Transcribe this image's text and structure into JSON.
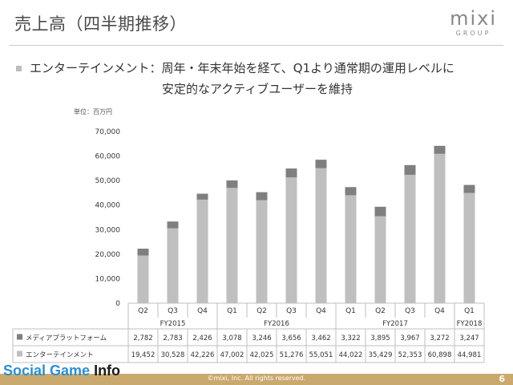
{
  "slide": {
    "title": "売上高（四半期推移）",
    "logo_word": "mixi",
    "logo_sub": "GROUP",
    "bullet_line1": "エンターテインメント：周年・年末年始を経て、Q1より通常期の運用レベルに",
    "bullet_line2": "安定的なアクティブユーザーを維持",
    "footer_copy": "©mixi, Inc. All rights reserved.",
    "page_number": "6",
    "watermark_a": "Social Game ",
    "watermark_b": "Info"
  },
  "colors": {
    "media_platform": "#7f7f7f",
    "entertainment": "#bfbfbf",
    "footer": "#c9a96e"
  },
  "chart_data": {
    "type": "bar",
    "stacked": true,
    "unit_label": "単位：百万円",
    "categories": [
      "Q2",
      "Q3",
      "Q4",
      "Q1",
      "Q2",
      "Q3",
      "Q4",
      "Q1",
      "Q2",
      "Q3",
      "Q4",
      "Q1"
    ],
    "groups": [
      {
        "label": "FY2015",
        "span": 3
      },
      {
        "label": "FY2016",
        "span": 4
      },
      {
        "label": "FY2017",
        "span": 4
      },
      {
        "label": "FY2018",
        "span": 1
      }
    ],
    "series": [
      {
        "name": "エンターテインメント",
        "values": [
          19452,
          30528,
          42226,
          47002,
          42025,
          51276,
          55051,
          44022,
          35429,
          52353,
          60898,
          44981
        ]
      },
      {
        "name": "メディアプラットフォーム",
        "values": [
          2782,
          2783,
          2426,
          3078,
          3246,
          3656,
          3462,
          3322,
          3895,
          3967,
          3272,
          3247
        ]
      }
    ],
    "table_rows": [
      {
        "name": "メディアプラットフォーム",
        "cells": [
          "2,782",
          "2,783",
          "2,426",
          "3,078",
          "3,246",
          "3,656",
          "3,462",
          "3,322",
          "3,895",
          "3,967",
          "3,272",
          "3,247"
        ]
      },
      {
        "name": "エンターテインメント",
        "cells": [
          "19,452",
          "30,528",
          "42,226",
          "47,002",
          "42,025",
          "51,276",
          "55,051",
          "44,022",
          "35,429",
          "52,353",
          "60,898",
          "44,981"
        ]
      }
    ],
    "ylim": [
      0,
      70000
    ],
    "yticks": [
      "0",
      "10,000",
      "20,000",
      "30,000",
      "40,000",
      "50,000",
      "60,000",
      "70,000"
    ],
    "grid": false
  }
}
